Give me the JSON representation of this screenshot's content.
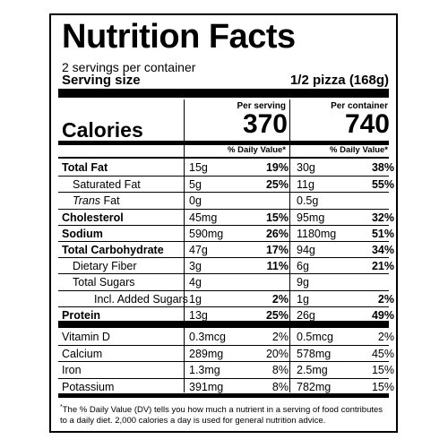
{
  "title": "Nutrition Facts",
  "servings_per_container": "2 servings per container",
  "serving_size_label": "Serving size",
  "serving_size_value": "1/2 pizza (168g)",
  "per_serving_label": "Per serving",
  "per_container_label": "Per container",
  "calories_label": "Calories",
  "calories_per_serving": "370",
  "calories_per_container": "740",
  "daily_value_label": "% Daily Value*",
  "nutrients": [
    {
      "name": "Total Fat",
      "bold": true,
      "indent": 0,
      "serv_amt": "15g",
      "serv_pct": "19%",
      "cont_amt": "30g",
      "cont_pct": "38%"
    },
    {
      "name": "Saturated Fat",
      "bold": false,
      "indent": 1,
      "serv_amt": "5g",
      "serv_pct": "25%",
      "cont_amt": "11g",
      "cont_pct": "55%"
    },
    {
      "name": "Fat",
      "italic_prefix": "Trans",
      "bold": false,
      "indent": 1,
      "serv_amt": "0g",
      "serv_pct": "",
      "cont_amt": "0.5g",
      "cont_pct": ""
    },
    {
      "name": "Cholesterol",
      "bold": true,
      "indent": 0,
      "serv_amt": "45mg",
      "serv_pct": "15%",
      "cont_amt": "95mg",
      "cont_pct": "32%"
    },
    {
      "name": "Sodium",
      "bold": true,
      "indent": 0,
      "serv_amt": "590mg",
      "serv_pct": "26%",
      "cont_amt": "1180mg",
      "cont_pct": "51%"
    },
    {
      "name": "Total Carbohydrate",
      "bold": true,
      "indent": 0,
      "serv_amt": "47g",
      "serv_pct": "17%",
      "cont_amt": "94g",
      "cont_pct": "34%"
    },
    {
      "name": "Dietary Fiber",
      "bold": false,
      "indent": 1,
      "serv_amt": "3g",
      "serv_pct": "11%",
      "cont_amt": "6g",
      "cont_pct": "21%"
    },
    {
      "name": "Total Sugars",
      "bold": false,
      "indent": 1,
      "serv_amt": "4g",
      "serv_pct": "",
      "cont_amt": "9g",
      "cont_pct": ""
    },
    {
      "name": "Incl. Added Sugars",
      "bold": false,
      "indent": 2,
      "serv_amt": "1g",
      "serv_pct": "2%",
      "cont_amt": "1g",
      "cont_pct": "2%"
    },
    {
      "name": "Protein",
      "bold": true,
      "indent": 0,
      "serv_amt": "13g",
      "serv_pct": "25%",
      "cont_amt": "26g",
      "cont_pct": "49%"
    }
  ],
  "vitamins": [
    {
      "name": "Vitamin D",
      "serv_amt": "0.3mcg",
      "serv_pct": "2%",
      "cont_amt": "0.5mcg",
      "cont_pct": "2%"
    },
    {
      "name": "Calcium",
      "serv_amt": "289mg",
      "serv_pct": "20%",
      "cont_amt": "578mg",
      "cont_pct": "45%"
    },
    {
      "name": "Iron",
      "serv_amt": "1.3mg",
      "serv_pct": "8%",
      "cont_amt": "2.5mg",
      "cont_pct": "15%"
    },
    {
      "name": "Potassium",
      "serv_amt": "391mg",
      "serv_pct": "8%",
      "cont_amt": "782mg",
      "cont_pct": "15%"
    }
  ],
  "footnote_star": "*",
  "footnote": "The % Daily Value (DV) tells you how much a nutrient in a serving of food contributes to a daily diet. 2,000 calories a day is used for general nutrition advice."
}
